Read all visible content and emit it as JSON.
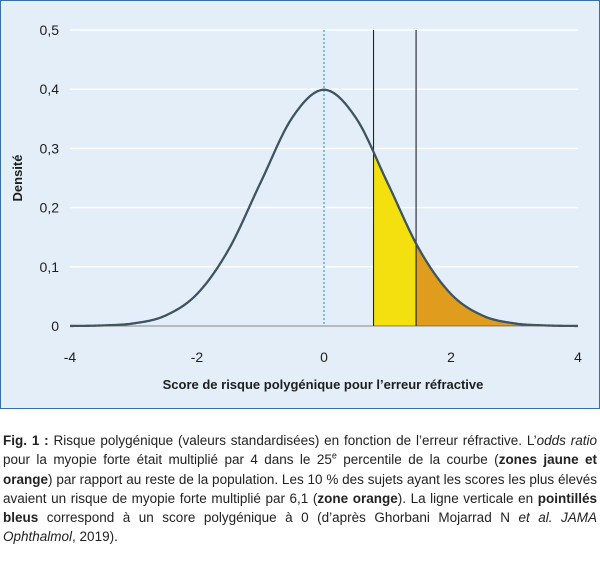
{
  "chart_data": {
    "type": "line",
    "title": "",
    "xlabel": "Score de risque polygénique pour l’erreur réfractive",
    "ylabel": "Densité",
    "xlim": [
      -4,
      4
    ],
    "ylim": [
      0,
      0.5
    ],
    "x_ticks": [
      "-4",
      "-2",
      "0",
      "2",
      "4"
    ],
    "y_ticks": [
      "0",
      "0,1",
      "0,2",
      "0,3",
      "0,4",
      "0,5"
    ],
    "grid": "horizontal",
    "legend": "none",
    "series": [
      {
        "x": [
          -4,
          -3.5,
          -3,
          -2.5,
          -2,
          -1.5,
          -1,
          -0.5,
          0,
          0.5,
          1,
          1.5,
          2,
          2.5,
          3,
          3.5,
          4
        ],
        "values": [
          0.0001,
          0.0009,
          0.0044,
          0.0175,
          0.054,
          0.1295,
          0.242,
          0.352,
          0.399,
          0.352,
          0.242,
          0.1295,
          0.054,
          0.0175,
          0.0044,
          0.0009,
          0.0001
        ]
      }
    ],
    "mean_marker_x": 0,
    "percentile_lines_x": [
      0.78,
      1.45
    ],
    "shaded_zones": [
      {
        "from": 0.78,
        "to": 1.45,
        "color": "#f3e00e"
      },
      {
        "from": 1.45,
        "to": 4,
        "color": "#e09c1c"
      }
    ],
    "colors": {
      "curve": "#3d5563",
      "mean_line": "#2fa3d6",
      "grid": "#ffffff",
      "background": "#e4eef8",
      "frame": "#3a6fa6"
    }
  },
  "caption": {
    "label": "Fig. 1 :",
    "seg1": " Risque polygénique (valeurs standardisées) en fonction de l’erreur réfractive. L’",
    "seg2": "odds ratio",
    "seg3": " pour la myopie forte était multiplié par 4 dans le 25",
    "seg4": "e",
    "seg5": " percentile de la courbe (",
    "seg6": "zones jaune et orange",
    "seg7": ") par rapport au reste de la population. Les 10 % des sujets ayant les scores les plus élevés avaient un risque de myopie forte multiplié par 6,1 (",
    "seg8": "zone orange",
    "seg9": "). La ligne verticale en ",
    "seg10": "pointillés bleus",
    "seg11": " correspond à un score polygénique à 0 (d’après Ghorbani Mojarrad N ",
    "seg12": "et al.",
    "seg13": " ",
    "seg14": "JAMA Ophthalmol",
    "seg15": ", 2019)."
  }
}
